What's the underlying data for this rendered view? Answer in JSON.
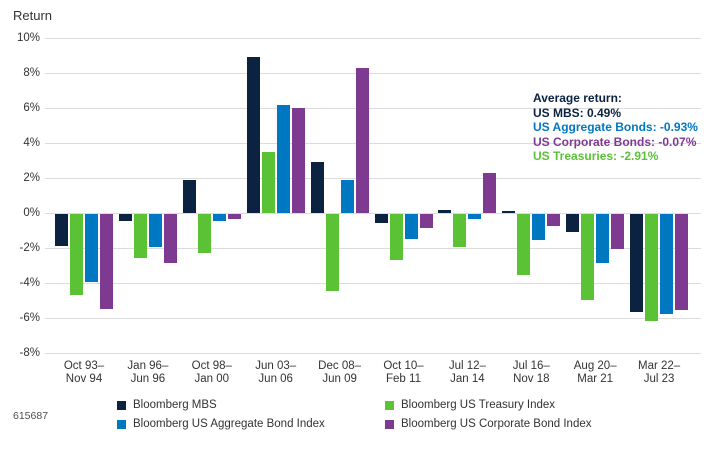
{
  "footnote": "615687",
  "chart_data": {
    "type": "bar",
    "title": "Return",
    "xlabel": "",
    "ylabel": "Return",
    "ylim": [
      -8,
      10
    ],
    "grid": "horizontal",
    "y_ticks": [
      "10%",
      "8%",
      "6%",
      "4%",
      "2%",
      "0%",
      "-2%",
      "-4%",
      "-6%",
      "-8%"
    ],
    "categories": [
      "Oct 93–\nNov 94",
      "Jan 96–\nJun 96",
      "Oct 98–\nJan 00",
      "Jun 03–\nJun 06",
      "Dec 08–\nJun 09",
      "Oct 10–\nFeb 11",
      "Jul 12–\nJan 14",
      "Jul 16–\nNov 18",
      "Aug 20–\nMar 21",
      "Mar 22–\nJul 23"
    ],
    "series": [
      {
        "name": "Bloomberg MBS",
        "color": "#0b2341",
        "values": [
          -1.8,
          -0.4,
          1.9,
          8.9,
          2.9,
          -0.5,
          0.2,
          0.1,
          -1.0,
          -5.6
        ]
      },
      {
        "name": "Bloomberg US Treasury Index",
        "color": "#5bc236",
        "values": [
          -4.6,
          -2.5,
          -2.2,
          3.5,
          -4.4,
          -2.6,
          -1.9,
          -3.5,
          -4.9,
          -6.1
        ]
      },
      {
        "name": "Bloomberg US Aggregate Bond Index",
        "color": "#0078c1",
        "values": [
          -3.9,
          -1.9,
          -0.4,
          6.2,
          1.9,
          -1.4,
          -0.3,
          -1.5,
          -2.8,
          -5.7
        ]
      },
      {
        "name": "Bloomberg US Corporate Bond Index",
        "color": "#7d3a90",
        "values": [
          -5.4,
          -2.8,
          -0.3,
          6.0,
          8.3,
          -0.8,
          2.3,
          -0.7,
          -2.0,
          -5.5
        ]
      }
    ],
    "legend": {
      "position": "bottom",
      "rows": [
        [
          {
            "label": "Bloomberg MBS",
            "color": "#0b2341"
          },
          {
            "label": "Bloomberg US Treasury Index",
            "color": "#5bc236"
          }
        ],
        [
          {
            "label": "Bloomberg US Aggregate Bond Index",
            "color": "#0078c1"
          },
          {
            "label": "Bloomberg US Corporate Bond Index",
            "color": "#7d3a90"
          }
        ]
      ]
    },
    "annotation": {
      "lines": [
        {
          "text": "Average return:",
          "color": "#0b2341"
        },
        {
          "text": "US MBS: 0.49%",
          "color": "#0b2341"
        },
        {
          "text": "US Aggregate Bonds: -0.93%",
          "color": "#0078c1"
        },
        {
          "text": "US Corporate Bonds: -0.07%",
          "color": "#7d3a90"
        },
        {
          "text": "US Treasuries: -2.91%",
          "color": "#5bc236"
        }
      ]
    }
  }
}
